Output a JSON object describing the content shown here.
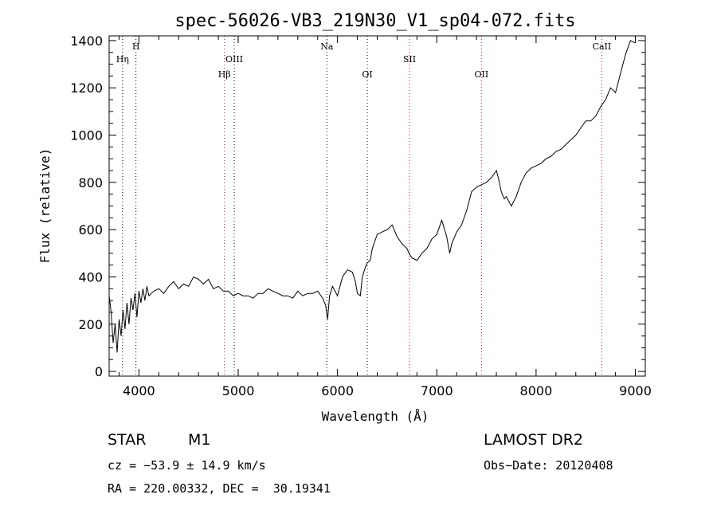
{
  "chart_data": {
    "type": "line",
    "title": "spec-56026-VB3_219N30_V1_sp04-072.fits",
    "xlabel": "Wavelength (Å)",
    "ylabel": "Flux (relative)",
    "xlim": [
      3700,
      9100
    ],
    "ylim": [
      -20,
      1420
    ],
    "xticks": [
      4000,
      5000,
      6000,
      7000,
      8000,
      9000
    ],
    "yticks": [
      0,
      200,
      400,
      600,
      800,
      1000,
      1200,
      1400
    ],
    "grid": false,
    "series": [
      {
        "x": [
          3700,
          3720,
          3740,
          3760,
          3780,
          3800,
          3820,
          3840,
          3860,
          3880,
          3900,
          3920,
          3940,
          3960,
          3980,
          4000,
          4020,
          4040,
          4060,
          4080,
          4100,
          4150,
          4200,
          4250,
          4300,
          4350,
          4400,
          4450,
          4500,
          4550,
          4600,
          4650,
          4700,
          4750,
          4800,
          4850,
          4900,
          4950,
          5000,
          5050,
          5100,
          5150,
          5200,
          5250,
          5300,
          5350,
          5400,
          5450,
          5500,
          5550,
          5600,
          5650,
          5700,
          5750,
          5800,
          5850,
          5880,
          5900,
          5920,
          5950,
          6000,
          6050,
          6100,
          6150,
          6180,
          6200,
          6230,
          6250,
          6280,
          6300,
          6330,
          6350,
          6400,
          6450,
          6500,
          6550,
          6600,
          6650,
          6700,
          6720,
          6750,
          6800,
          6850,
          6900,
          6950,
          7000,
          7050,
          7100,
          7130,
          7150,
          7200,
          7250,
          7300,
          7350,
          7400,
          7450,
          7500,
          7550,
          7600,
          7620,
          7650,
          7680,
          7700,
          7750,
          7800,
          7850,
          7900,
          7950,
          8000,
          8050,
          8100,
          8150,
          8200,
          8250,
          8300,
          8350,
          8400,
          8450,
          8500,
          8550,
          8600,
          8650,
          8700,
          8750,
          8800,
          8850,
          8900,
          8950,
          9000
        ],
        "y": [
          320,
          250,
          120,
          200,
          80,
          220,
          150,
          260,
          180,
          290,
          200,
          310,
          260,
          330,
          230,
          340,
          290,
          350,
          300,
          360,
          320,
          340,
          350,
          330,
          360,
          380,
          350,
          370,
          360,
          400,
          390,
          370,
          390,
          350,
          360,
          340,
          340,
          320,
          330,
          320,
          320,
          310,
          330,
          330,
          350,
          340,
          330,
          320,
          320,
          310,
          340,
          320,
          330,
          330,
          340,
          310,
          280,
          220,
          320,
          360,
          320,
          400,
          430,
          420,
          380,
          330,
          320,
          400,
          440,
          460,
          470,
          520,
          580,
          590,
          600,
          620,
          570,
          540,
          520,
          500,
          480,
          470,
          500,
          520,
          560,
          580,
          640,
          570,
          500,
          540,
          590,
          620,
          680,
          760,
          780,
          790,
          800,
          820,
          850,
          820,
          760,
          730,
          740,
          700,
          740,
          800,
          840,
          860,
          870,
          880,
          900,
          910,
          930,
          940,
          960,
          980,
          1000,
          1030,
          1060,
          1060,
          1080,
          1120,
          1150,
          1200,
          1180,
          1260,
          1340,
          1400,
          1390
        ]
      }
    ],
    "line_markers": [
      {
        "label": "Hη",
        "x": 3835,
        "tier": 2,
        "color": "#000000"
      },
      {
        "label": "H",
        "x": 3970,
        "tier": 1,
        "color": "#000000"
      },
      {
        "label": "Hβ",
        "x": 4861,
        "tier": 3,
        "color": "#b02020"
      },
      {
        "label": "OIII",
        "x": 4960,
        "tier": 2,
        "color": "#000000"
      },
      {
        "label": "Na",
        "x": 5893,
        "tier": 1,
        "color": "#000000"
      },
      {
        "label": "OI",
        "x": 6300,
        "tier": 3,
        "color": "#000000"
      },
      {
        "label": "SII",
        "x": 6725,
        "tier": 2,
        "color": "#b02020"
      },
      {
        "label": "OII",
        "x": 7450,
        "tier": 3,
        "color": "#b02020"
      },
      {
        "label": "CaII",
        "x": 8662,
        "tier": 1,
        "color": "#b02020"
      }
    ]
  },
  "info": {
    "object_class": "STAR",
    "subclass": "M1",
    "survey": "LAMOST DR2",
    "cz": "cz = −53.9 ± 14.9 km/s",
    "obs_date": "Obs−Date: 20120408",
    "coords": "RA = 220.00332, DEC =  30.19341"
  }
}
